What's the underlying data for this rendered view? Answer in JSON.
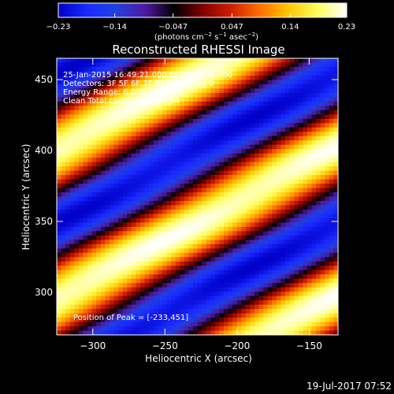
{
  "chart_data": {
    "type": "heatmap",
    "title": "Reconstructed RHESSI Image",
    "xlabel": "Heliocentric X (arcsec)",
    "ylabel": "Heliocentric Y (arcsec)",
    "xlim": [
      -325,
      -130
    ],
    "ylim": [
      270,
      465
    ],
    "x_ticks": [
      -300,
      -250,
      -200,
      -150
    ],
    "x_tick_labels": [
      "−300",
      "−250",
      "−200",
      "−150"
    ],
    "y_ticks": [
      300,
      350,
      400,
      450
    ],
    "y_tick_labels": [
      "300",
      "350",
      "400",
      "450"
    ],
    "colorbar": {
      "range": [
        -0.23,
        0.23
      ],
      "ticks": [
        -0.23,
        -0.14,
        -0.047,
        0.047,
        0.14,
        0.23
      ],
      "tick_labels": [
        "−0.23",
        "−0.14",
        "−0.047",
        "0.047",
        "0.14",
        "0.23"
      ],
      "unit_parts": [
        "(photons cm",
        "−2",
        " s",
        "−1",
        " asec",
        "−2",
        ")"
      ]
    },
    "stripes": {
      "slope": 0.55,
      "pivot_x": -233,
      "pivot_y": 451,
      "period_y": 105,
      "peak_value": 0.23,
      "trough_value": -0.23
    },
    "annotations": [
      "25-Jan-2015 16:49:21.000 to 16:52:24.000",
      "Detectors: 3F 5F 6F 7F 8F 9F  NoFlag:0",
      "Energy Range: 6.0 to 12.0 keV",
      "Clean     Total counts: 4.86E+04"
    ],
    "peak_label": "Position of Peak = [-233,451]",
    "timestamp": "19-Jul-2017 07:52"
  },
  "colors": {
    "colormap": [
      "#0000c8",
      "#1a2aff",
      "#2040e0",
      "#5018a0",
      "#000000",
      "#800000",
      "#d02000",
      "#ff7000",
      "#ffc800",
      "#ffff60",
      "#ffffff"
    ]
  }
}
